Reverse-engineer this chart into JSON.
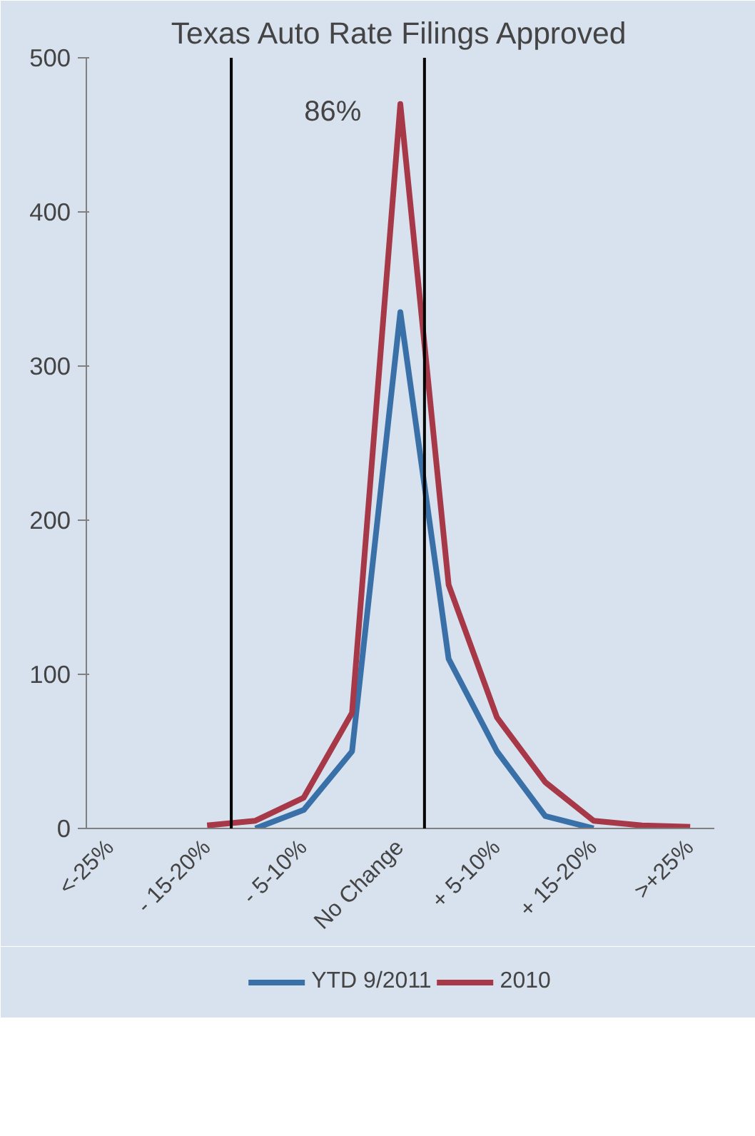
{
  "chart_data": {
    "type": "line",
    "title": "Texas Auto Rate Filings Approved",
    "categories": [
      "<-25%",
      null,
      "- 15-20%",
      null,
      "- 5-10%",
      null,
      "No Change",
      null,
      "+ 5-10%",
      null,
      "+ 15-20%",
      null,
      ">+25%"
    ],
    "series": [
      {
        "name": "YTD 9/2011",
        "color": "#3a70a8",
        "values": [
          null,
          null,
          null,
          0,
          12,
          50,
          335,
          110,
          50,
          8,
          0,
          null,
          null
        ]
      },
      {
        "name": "2010",
        "color": "#a63848",
        "values": [
          null,
          null,
          2,
          5,
          20,
          75,
          470,
          158,
          72,
          30,
          5,
          2,
          1
        ]
      }
    ],
    "ylim": [
      0,
      500
    ],
    "yticks": [
      0,
      100,
      200,
      300,
      400,
      500
    ],
    "annotations": [
      "86%"
    ],
    "grid": false,
    "legend": "bottom",
    "marker": "none",
    "line_style": "solid"
  }
}
